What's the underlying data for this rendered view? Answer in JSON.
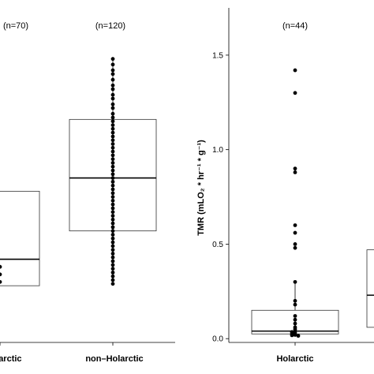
{
  "chart_data": [
    {
      "type": "box",
      "panel": "left",
      "categories": [
        "Holarctic",
        "non–Holarctic"
      ],
      "n_labels": [
        "(n=70)",
        "(n=120)"
      ],
      "groups": [
        {
          "name": "Holarctic",
          "q1": 0.28,
          "median": 0.42,
          "q3": 0.78,
          "points": [
            0.38,
            0.34,
            0.3
          ]
        },
        {
          "name": "non–Holarctic",
          "q1": 0.57,
          "median": 0.85,
          "q3": 1.16,
          "points": [
            1.48,
            1.45,
            1.42,
            1.4,
            1.37,
            1.34,
            1.32,
            1.29,
            1.27,
            1.24,
            1.22,
            1.19,
            1.17,
            1.15,
            1.13,
            1.11,
            1.09,
            1.07,
            1.05,
            1.03,
            1.01,
            0.99,
            0.97,
            0.95,
            0.93,
            0.91,
            0.89,
            0.87,
            0.85,
            0.83,
            0.81,
            0.79,
            0.77,
            0.75,
            0.73,
            0.71,
            0.69,
            0.67,
            0.65,
            0.63,
            0.61,
            0.59,
            0.57,
            0.55,
            0.53,
            0.51,
            0.49,
            0.47,
            0.45,
            0.43,
            0.41,
            0.39,
            0.37,
            0.35,
            0.33,
            0.31,
            0.29
          ]
        }
      ]
    },
    {
      "type": "box",
      "panel": "right",
      "categories": [
        "Holarctic",
        ""
      ],
      "n_labels": [
        "(n=44)"
      ],
      "ylabel": "TMR (mLO₂ * hr⁻¹ * g⁻¹)",
      "ylim": [
        -0.02,
        1.75
      ],
      "yticks": [
        0.0,
        0.5,
        1.0,
        1.5
      ],
      "ytick_labels": [
        "0.0",
        "0.5",
        "1.0",
        "1.5"
      ],
      "groups": [
        {
          "name": "Holarctic",
          "q1": 0.025,
          "median": 0.04,
          "q3": 0.15,
          "whisker_low": 0.015,
          "whisker_high": 0.3,
          "points": [
            1.42,
            1.3,
            0.9,
            0.88,
            0.6,
            0.56,
            0.5,
            0.48,
            0.3,
            0.2,
            0.18,
            0.12,
            0.1,
            0.08,
            0.06,
            0.05,
            0.04,
            0.035,
            0.03,
            0.025,
            0.02,
            0.018,
            0.015
          ]
        },
        {
          "name": "",
          "q1": 0.06,
          "median": 0.23,
          "q3": 0.47,
          "points": []
        }
      ]
    }
  ]
}
